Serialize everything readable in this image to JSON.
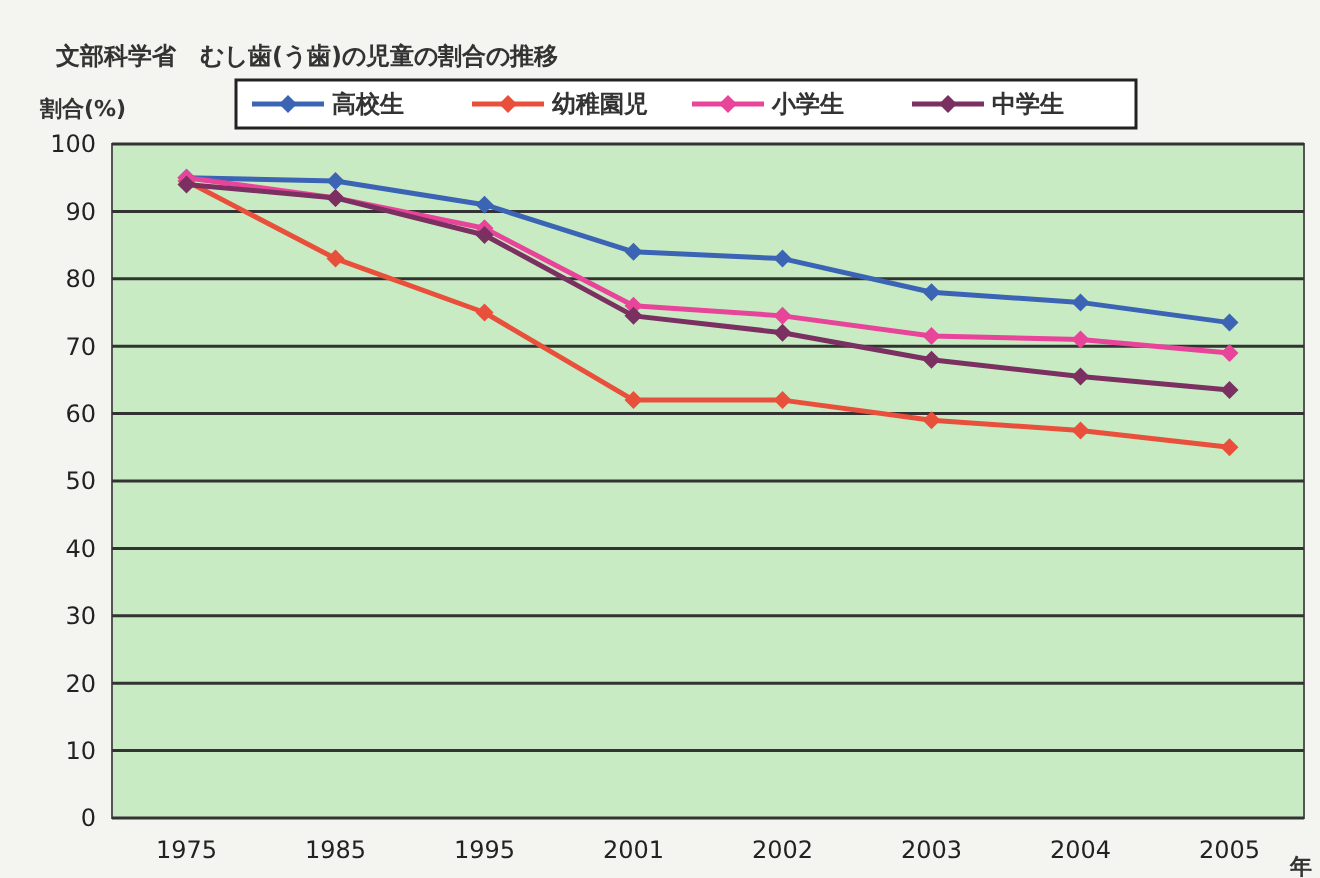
{
  "chart_data": {
    "type": "line",
    "title": "文部科学省　むし歯(う歯)の児童の割合の推移",
    "ylabel": "割合(%)",
    "xlabel": "年",
    "categories": [
      "1975",
      "1985",
      "1995",
      "2001",
      "2002",
      "2003",
      "2004",
      "2005"
    ],
    "series": [
      {
        "name": "高校生",
        "color": "#3c64b4",
        "values": [
          95,
          94.5,
          91,
          84,
          83,
          78,
          76.5,
          73.5
        ]
      },
      {
        "name": "幼稚園児",
        "color": "#e8503c",
        "values": [
          94.5,
          83,
          75,
          62,
          62,
          59,
          57.5,
          55
        ]
      },
      {
        "name": "小学生",
        "color": "#e8449a",
        "values": [
          95,
          92,
          87.5,
          76,
          74.5,
          71.5,
          71,
          69
        ]
      },
      {
        "name": "中学生",
        "color": "#7a3060",
        "values": [
          94,
          92,
          86.5,
          74.5,
          72,
          68,
          65.5,
          63.5
        ]
      }
    ],
    "ylim": [
      0,
      100
    ],
    "yticks": [
      0,
      10,
      20,
      30,
      40,
      50,
      60,
      70,
      80,
      90,
      100
    ],
    "grid": "y",
    "legend": "top",
    "marker": "diamond",
    "line_style": "solid"
  }
}
